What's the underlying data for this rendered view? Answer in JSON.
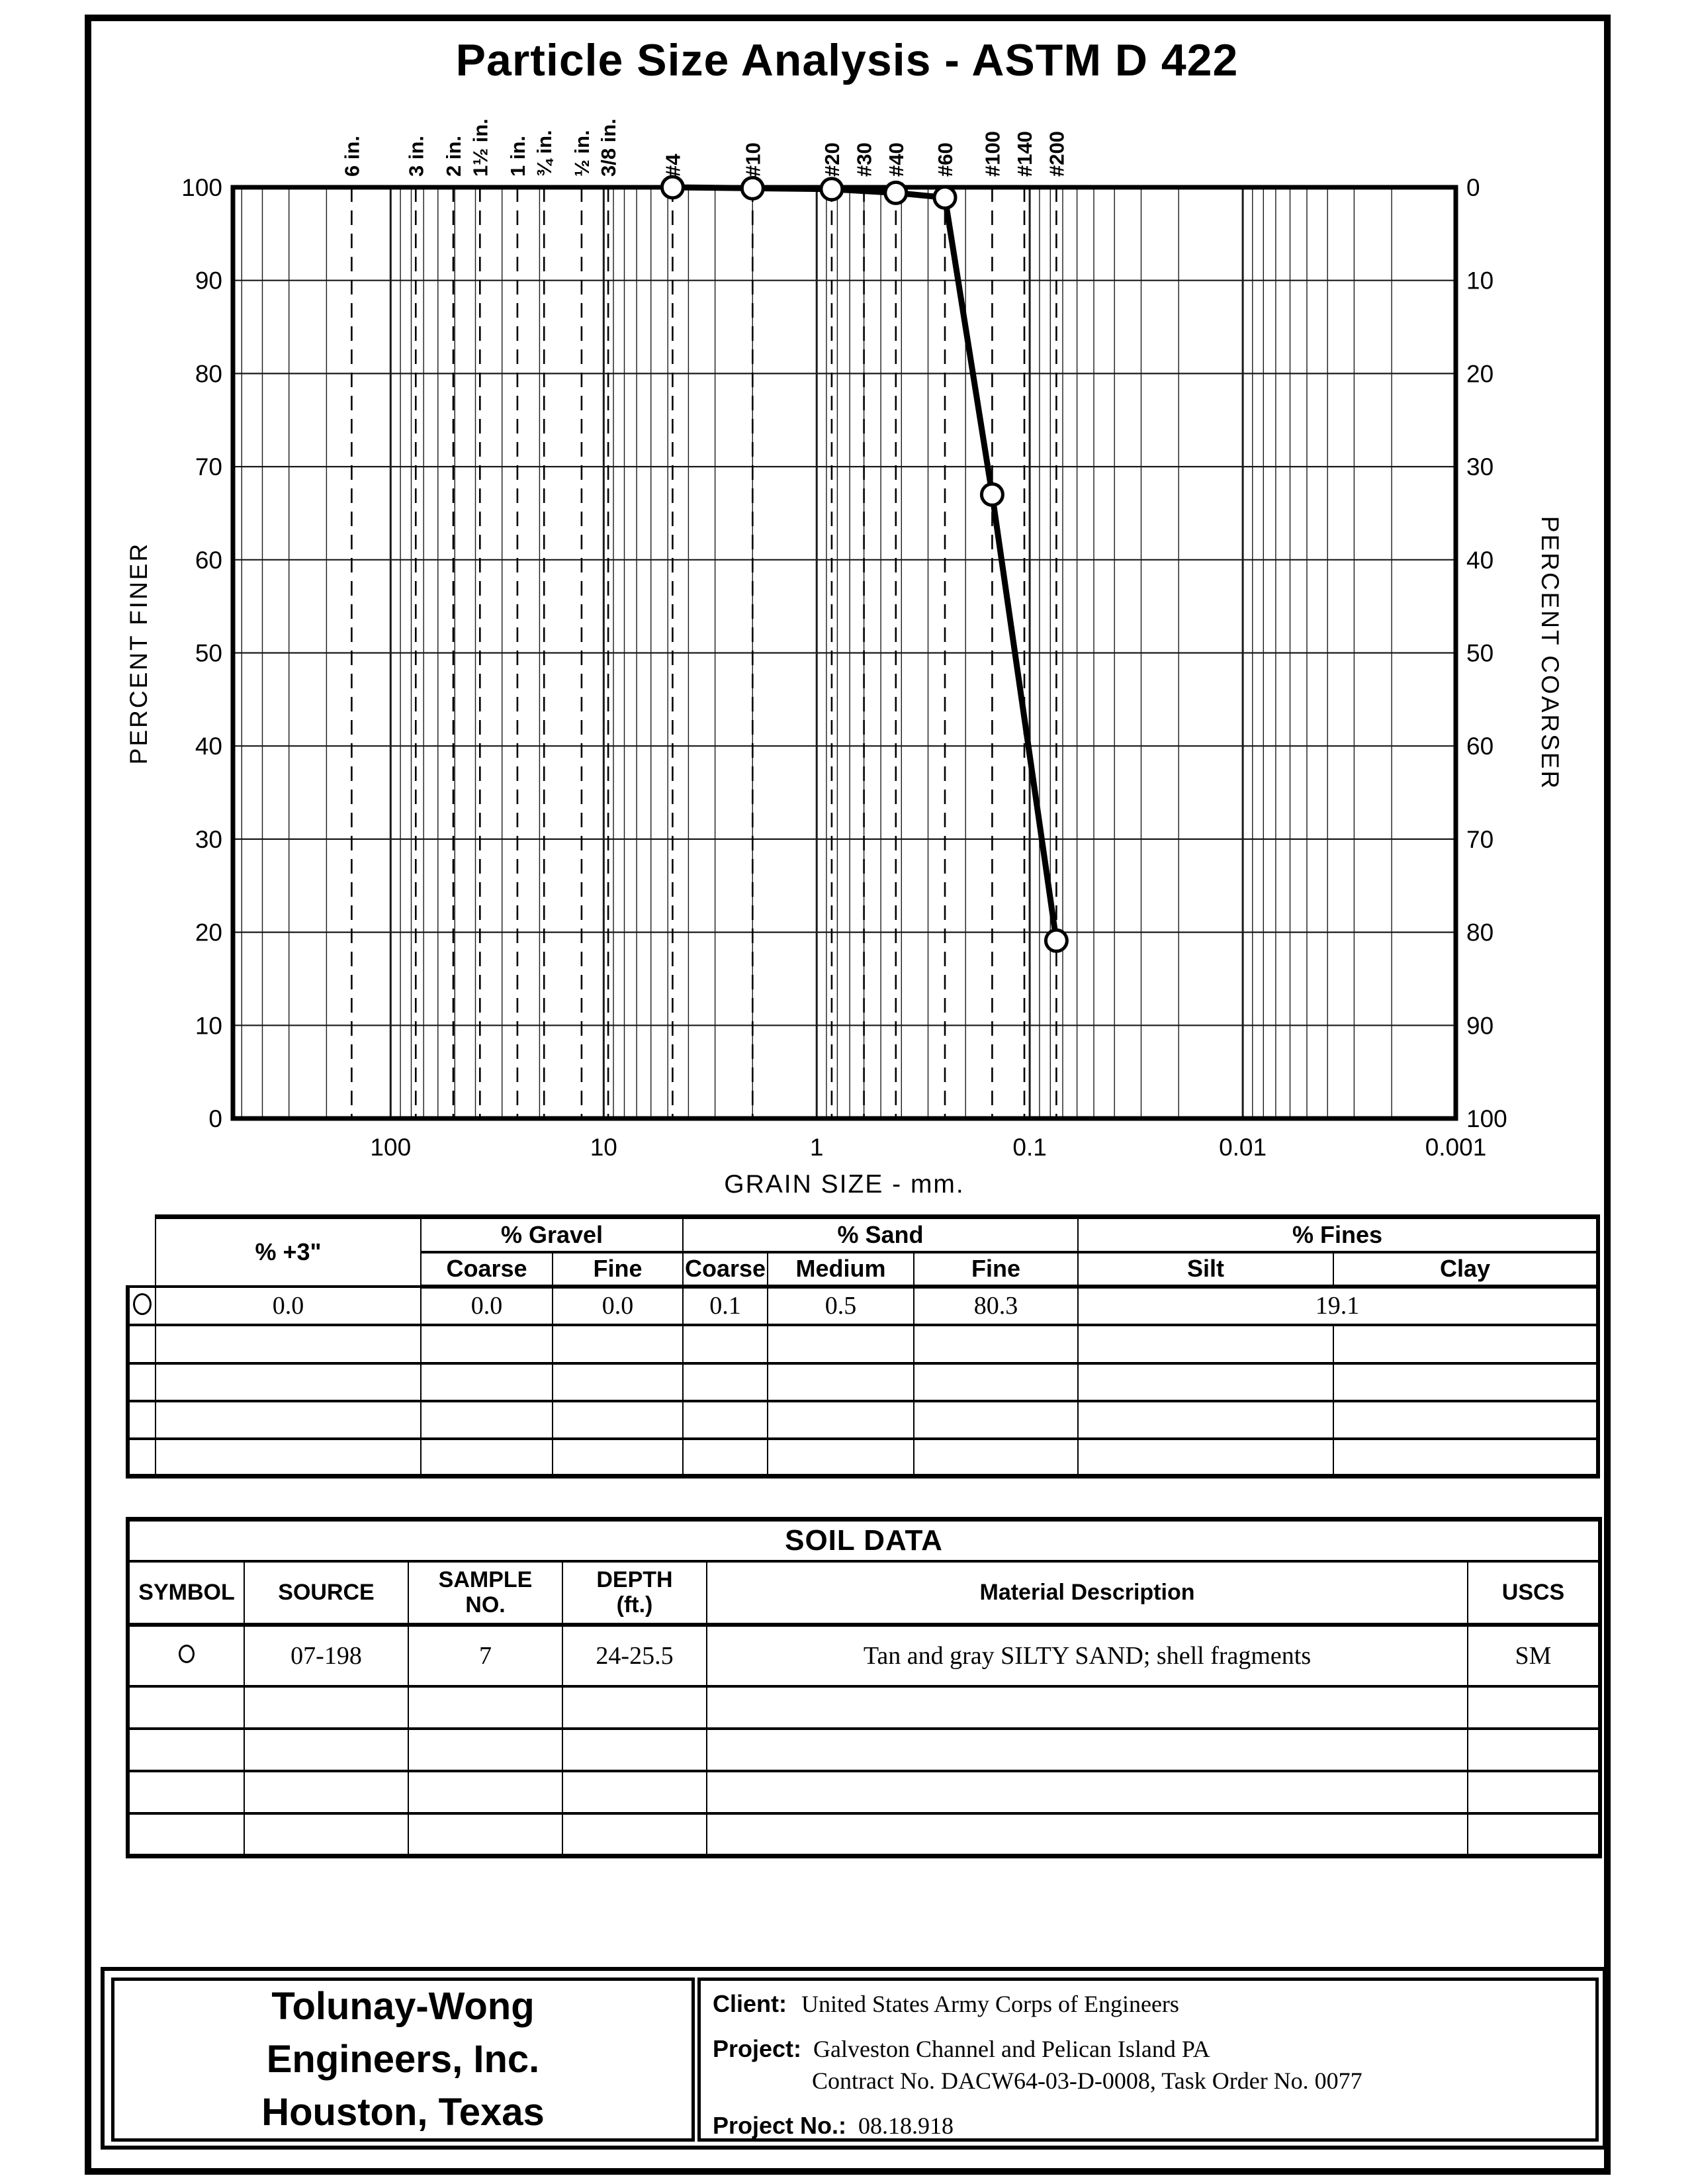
{
  "page": {
    "title": "Particle Size Analysis - ASTM D 422"
  },
  "chart_data": {
    "type": "line",
    "title": "Particle Size Analysis - ASTM D 422",
    "xlabel": "GRAIN SIZE - mm.",
    "ylabel_left": "PERCENT FINER",
    "ylabel_right": "PERCENT COARSER",
    "x_scale": "log",
    "x_range_mm": [
      550,
      0.001
    ],
    "ylim_left": [
      0,
      100
    ],
    "grid": true,
    "x_decade_ticks": [
      {
        "label": "100",
        "mm": 100
      },
      {
        "label": "10",
        "mm": 10
      },
      {
        "label": "1",
        "mm": 1
      },
      {
        "label": "0.1",
        "mm": 0.1
      },
      {
        "label": "0.01",
        "mm": 0.01
      },
      {
        "label": "0.001",
        "mm": 0.001
      }
    ],
    "y_ticks_left": [
      "100",
      "90",
      "80",
      "70",
      "60",
      "50",
      "40",
      "30",
      "20",
      "10",
      "0"
    ],
    "y_ticks_right": [
      "0",
      "10",
      "20",
      "30",
      "40",
      "50",
      "60",
      "70",
      "80",
      "90",
      "100"
    ],
    "sieves": [
      {
        "label": "6 in.",
        "mm": 152.4
      },
      {
        "label": "3 in.",
        "mm": 76.2
      },
      {
        "label": "2 in.",
        "mm": 50.8
      },
      {
        "label": "1½ in.",
        "mm": 38.1
      },
      {
        "label": "1 in.",
        "mm": 25.4
      },
      {
        "label": "¾ in.",
        "mm": 19.05
      },
      {
        "label": "½ in.",
        "mm": 12.7
      },
      {
        "label": "3/8 in.",
        "mm": 9.525
      },
      {
        "label": "#4",
        "mm": 4.75
      },
      {
        "label": "#10",
        "mm": 2.0
      },
      {
        "label": "#20",
        "mm": 0.85
      },
      {
        "label": "#30",
        "mm": 0.6
      },
      {
        "label": "#40",
        "mm": 0.425
      },
      {
        "label": "#60",
        "mm": 0.25
      },
      {
        "label": "#100",
        "mm": 0.15
      },
      {
        "label": "#140",
        "mm": 0.106
      },
      {
        "label": "#200",
        "mm": 0.075
      }
    ],
    "series": [
      {
        "name": "07-198 Sample 7",
        "marker": "open-circle",
        "points": [
          {
            "sieve": "#4",
            "mm": 4.75,
            "percent_finer": 100.0
          },
          {
            "sieve": "#10",
            "mm": 2.0,
            "percent_finer": 99.9
          },
          {
            "sieve": "#20",
            "mm": 0.85,
            "percent_finer": 99.8
          },
          {
            "sieve": "#40",
            "mm": 0.425,
            "percent_finer": 99.4
          },
          {
            "sieve": "#60",
            "mm": 0.25,
            "percent_finer": 98.9
          },
          {
            "sieve": "#100",
            "mm": 0.15,
            "percent_finer": 67.0
          },
          {
            "sieve": "#200",
            "mm": 0.075,
            "percent_finer": 19.1
          }
        ]
      }
    ]
  },
  "gradation": {
    "plus3_header": "% +3\"",
    "gravel_header": "% Gravel",
    "sand_header": "% Sand",
    "fines_header": "% Fines",
    "sub": {
      "gravel_coarse": "Coarse",
      "gravel_fine": "Fine",
      "sand_coarse": "Coarse",
      "sand_medium": "Medium",
      "sand_fine": "Fine",
      "silt": "Silt",
      "clay": "Clay"
    },
    "rows": [
      {
        "symbol": "circle",
        "plus3": "0.0",
        "gravel_coarse": "0.0",
        "gravel_fine": "0.0",
        "sand_coarse": "0.1",
        "sand_medium": "0.5",
        "sand_fine": "80.3",
        "fines": "19.1"
      }
    ]
  },
  "soil_data": {
    "title": "SOIL DATA",
    "headers": {
      "symbol": "SYMBOL",
      "source": "SOURCE",
      "sample1": "SAMPLE",
      "sample2": "NO.",
      "depth1": "DEPTH",
      "depth2": "(ft.)",
      "material": "Material Description",
      "uscs": "USCS"
    },
    "rows": [
      {
        "symbol": "circle",
        "source": "07-198",
        "sample_no": "7",
        "depth": "24-25.5",
        "description": "Tan and gray SILTY SAND; shell fragments",
        "uscs": "SM"
      }
    ]
  },
  "footer": {
    "company_line1": "Tolunay-Wong",
    "company_line2": "Engineers, Inc.",
    "company_line3": "Houston, Texas",
    "client_label": "Client:",
    "client": "United States Army Corps of Engineers",
    "project_label": "Project:",
    "project_line1": "Galveston Channel and Pelican Island PA",
    "project_line2": "Contract No. DACW64-03-D-0008, Task Order No. 0077",
    "project_no_label": "Project No.:",
    "project_no": "08.18.918"
  }
}
